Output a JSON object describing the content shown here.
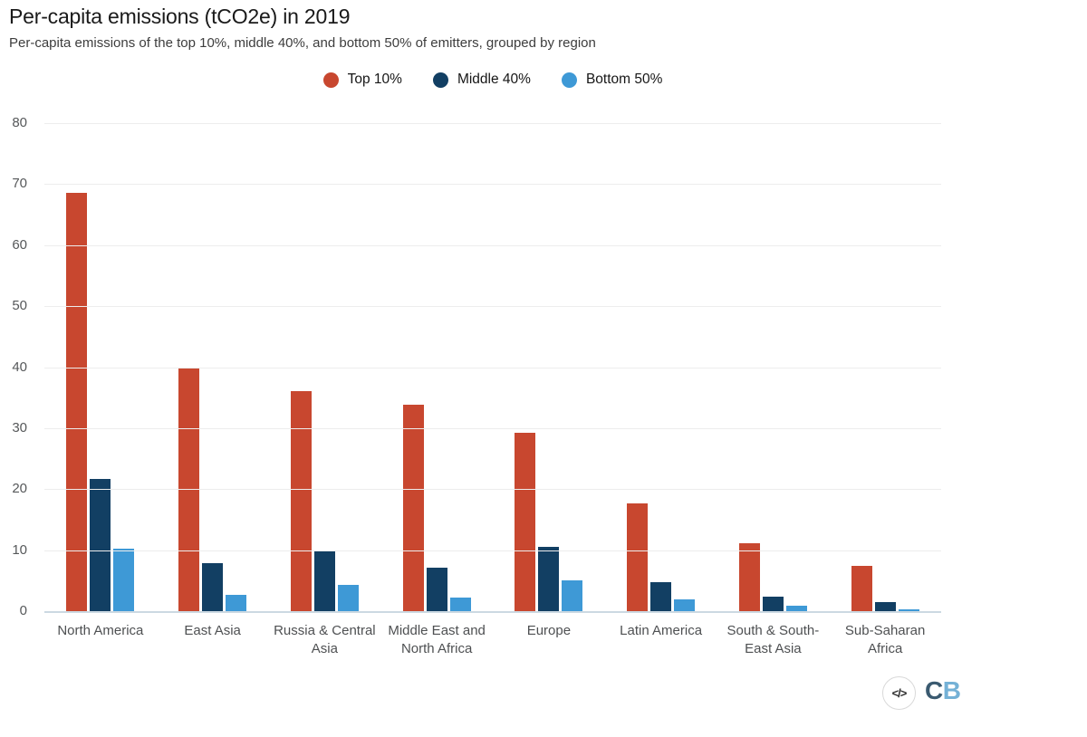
{
  "chart_data": {
    "type": "bar",
    "title": "Per-capita emissions (tCO2e) in 2019",
    "subtitle": "Per-capita emissions of the top 10%, middle 40%, and bottom 50% of emitters, grouped by region",
    "categories": [
      "North America",
      "East Asia",
      "Russia & Central Asia",
      "Middle East and North Africa",
      "Europe",
      "Latin America",
      "South & South-East Asia",
      "Sub-Saharan Africa"
    ],
    "series": [
      {
        "name": "Top 10%",
        "color": "#c8472f",
        "values": [
          68.6,
          39.8,
          36.0,
          33.8,
          29.3,
          17.7,
          11.1,
          7.4
        ]
      },
      {
        "name": "Middle 40%",
        "color": "#123f63",
        "values": [
          21.7,
          7.8,
          9.8,
          7.2,
          10.5,
          4.8,
          2.4,
          1.5
        ]
      },
      {
        "name": "Bottom 50%",
        "color": "#3e99d6",
        "values": [
          10.2,
          2.7,
          4.3,
          2.2,
          5.0,
          1.9,
          0.9,
          0.3
        ]
      }
    ],
    "xlabel": "",
    "ylabel": "",
    "ylim": [
      0,
      80
    ],
    "ytick_step": 10,
    "grid": true,
    "legend_position": "top",
    "colors": {
      "top10": "#c8472f",
      "middle40": "#123f63",
      "bottom50": "#3e99d6",
      "gridline": "#ededed",
      "baseline": "#ccd9e2",
      "axis_text": "#56585a"
    }
  },
  "footer": {
    "embed_icon": "code-icon",
    "embed_icon_glyph": "</>",
    "logo": {
      "dark_letter": "C",
      "light_letter": "B"
    }
  }
}
